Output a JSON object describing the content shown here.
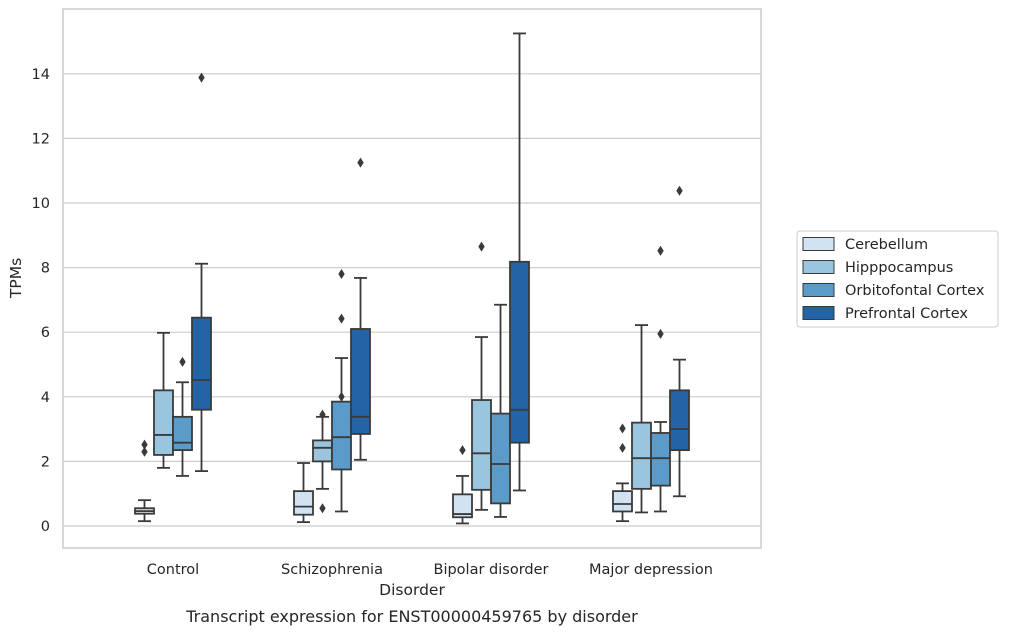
{
  "caption": "Transcript expression for ENST00000459765 by disorder",
  "chart_data": {
    "type": "box",
    "xlabel": "Disorder",
    "ylabel": "TPMs",
    "ylim": [
      -0.65,
      15.9
    ],
    "yticks": [
      0,
      2,
      4,
      6,
      8,
      10,
      12,
      14
    ],
    "grid": "horizontal",
    "legend_position": "right",
    "categories": [
      "Control",
      "Schizophrenia",
      "Bipolar disorder",
      "Major depression"
    ],
    "series": [
      {
        "name": "Cerebellum",
        "color": "#d1e2f2",
        "boxes": [
          {
            "whisker_low": 0.15,
            "q1": 0.38,
            "median": 0.46,
            "q3": 0.55,
            "whisker_high": 0.8,
            "outliers": [
              2.3,
              2.52
            ]
          },
          {
            "whisker_low": 0.12,
            "q1": 0.35,
            "median": 0.6,
            "q3": 1.08,
            "whisker_high": 1.95,
            "outliers": []
          },
          {
            "whisker_low": 0.08,
            "q1": 0.27,
            "median": 0.37,
            "q3": 0.98,
            "whisker_high": 1.55,
            "outliers": [
              2.35
            ]
          },
          {
            "whisker_low": 0.15,
            "q1": 0.45,
            "median": 0.68,
            "q3": 1.08,
            "whisker_high": 1.32,
            "outliers": [
              2.42,
              3.02
            ]
          }
        ]
      },
      {
        "name": "Hipppocampus",
        "color": "#9ac5de",
        "boxes": [
          {
            "whisker_low": 1.8,
            "q1": 2.2,
            "median": 2.82,
            "q3": 4.2,
            "whisker_high": 5.98,
            "outliers": []
          },
          {
            "whisker_low": 1.15,
            "q1": 2.0,
            "median": 2.42,
            "q3": 2.65,
            "whisker_high": 3.38,
            "outliers": [
              0.55,
              3.45
            ]
          },
          {
            "whisker_low": 0.5,
            "q1": 1.12,
            "median": 2.25,
            "q3": 3.9,
            "whisker_high": 5.85,
            "outliers": [
              8.65
            ]
          },
          {
            "whisker_low": 0.42,
            "q1": 1.15,
            "median": 2.1,
            "q3": 3.2,
            "whisker_high": 6.22,
            "outliers": []
          }
        ]
      },
      {
        "name": "Orbitofontal Cortex",
        "color": "#5a9bc9",
        "boxes": [
          {
            "whisker_low": 1.55,
            "q1": 2.35,
            "median": 2.58,
            "q3": 3.38,
            "whisker_high": 4.45,
            "outliers": [
              5.08
            ]
          },
          {
            "whisker_low": 0.45,
            "q1": 1.75,
            "median": 2.75,
            "q3": 3.85,
            "whisker_high": 5.2,
            "outliers": [
              4.0,
              6.42,
              7.8
            ]
          },
          {
            "whisker_low": 0.28,
            "q1": 0.7,
            "median": 1.92,
            "q3": 3.48,
            "whisker_high": 6.85,
            "outliers": []
          },
          {
            "whisker_low": 0.45,
            "q1": 1.25,
            "median": 2.1,
            "q3": 2.88,
            "whisker_high": 3.22,
            "outliers": [
              5.95,
              8.52
            ]
          }
        ]
      },
      {
        "name": "Prefrontal Cortex",
        "color": "#2464a6",
        "boxes": [
          {
            "whisker_low": 1.7,
            "q1": 3.6,
            "median": 4.52,
            "q3": 6.45,
            "whisker_high": 8.12,
            "outliers": [
              13.88
            ]
          },
          {
            "whisker_low": 2.05,
            "q1": 2.85,
            "median": 3.38,
            "q3": 6.1,
            "whisker_high": 7.68,
            "outliers": [
              11.25
            ]
          },
          {
            "whisker_low": 1.1,
            "q1": 2.58,
            "median": 3.6,
            "q3": 8.18,
            "whisker_high": 15.25,
            "outliers": []
          },
          {
            "whisker_low": 0.92,
            "q1": 2.35,
            "median": 3.0,
            "q3": 4.2,
            "whisker_high": 5.15,
            "outliers": [
              10.38
            ]
          }
        ]
      }
    ]
  }
}
